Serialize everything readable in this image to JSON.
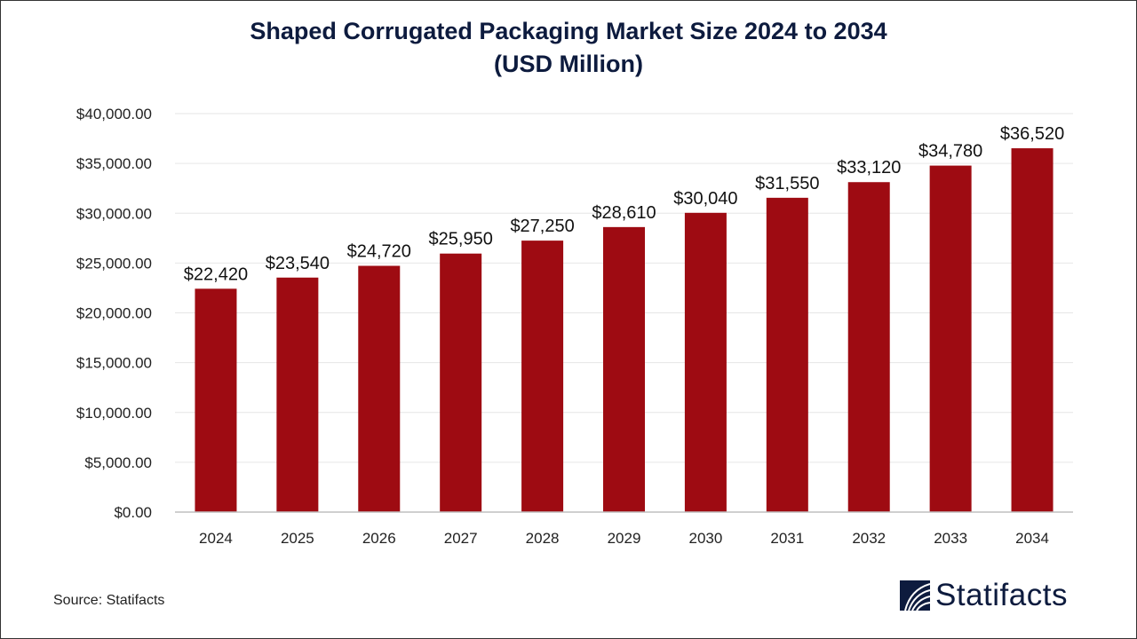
{
  "chart_data": {
    "type": "bar",
    "title": "Shaped Corrugated Packaging Market Size 2024 to 2034",
    "subtitle": "(USD Million)",
    "categories": [
      "2024",
      "2025",
      "2026",
      "2027",
      "2028",
      "2029",
      "2030",
      "2031",
      "2032",
      "2033",
      "2034"
    ],
    "values": [
      22420,
      23540,
      24720,
      25950,
      27250,
      28610,
      30040,
      31550,
      33120,
      34780,
      36520
    ],
    "data_labels": [
      "$22,420",
      "$23,540",
      "$24,720",
      "$25,950",
      "$27,250",
      "$28,610",
      "$30,040",
      "$31,550",
      "$33,120",
      "$34,780",
      "$36,520"
    ],
    "y_ticks": [
      0,
      5000,
      10000,
      15000,
      20000,
      25000,
      30000,
      35000,
      40000
    ],
    "y_tick_labels": [
      "$0.00",
      "$5,000.00",
      "$10,000.00",
      "$15,000.00",
      "$20,000.00",
      "$25,000.00",
      "$30,000.00",
      "$35,000.00",
      "$40,000.00"
    ],
    "ylim": [
      0,
      40000
    ],
    "xlabel": "",
    "ylabel": "",
    "grid": true,
    "bar_color": "#9e0b12"
  },
  "source": "Source: Statifacts",
  "logo": {
    "text": "Statifacts",
    "color": "#0d1b3e"
  }
}
